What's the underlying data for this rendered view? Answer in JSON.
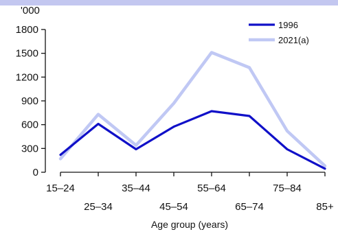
{
  "chart_data": {
    "type": "line",
    "title": "",
    "unit_label": "'000",
    "xlabel": "Age group (years)",
    "ylabel": "",
    "ylim": [
      0,
      1800
    ],
    "yticks": [
      0,
      300,
      600,
      900,
      1200,
      1500,
      1800
    ],
    "categories": [
      "15–24",
      "25–34",
      "35–44",
      "45–54",
      "55–64",
      "65–74",
      "75–84",
      "85+"
    ],
    "series": [
      {
        "name": "1996",
        "color": "#1010c8",
        "values": [
          220,
          610,
          290,
          575,
          770,
          710,
          290,
          45
        ]
      },
      {
        "name": "2021(a)",
        "color": "#c0c8f4",
        "values": [
          170,
          730,
          340,
          870,
          1510,
          1320,
          520,
          80
        ]
      }
    ],
    "legend_position": "top-right",
    "grid": false
  }
}
